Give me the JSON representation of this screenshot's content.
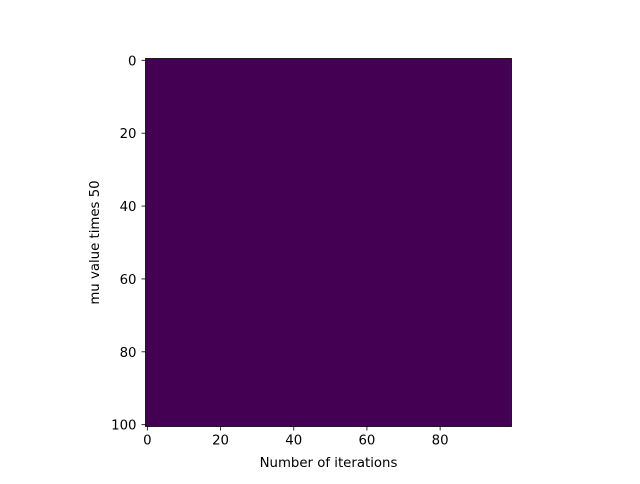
{
  "chart_data": {
    "type": "heatmap",
    "title": "",
    "xlabel": "Number of iterations",
    "ylabel": "mu value times 50",
    "x_ticks": [
      0,
      20,
      40,
      60,
      80
    ],
    "y_ticks": [
      0,
      20,
      40,
      60,
      80,
      100
    ],
    "xlim": [
      -0.5,
      99.5
    ],
    "ylim": [
      100.5,
      -0.5
    ],
    "y_inverted": true,
    "grid": false,
    "colormap": "viridis",
    "cell_color": "#440154",
    "values": "uniform minimum value across all 101 x 100 cells"
  },
  "colors": {
    "heatmap_fill": "#440154",
    "axes": "#000000",
    "background": "#ffffff"
  }
}
